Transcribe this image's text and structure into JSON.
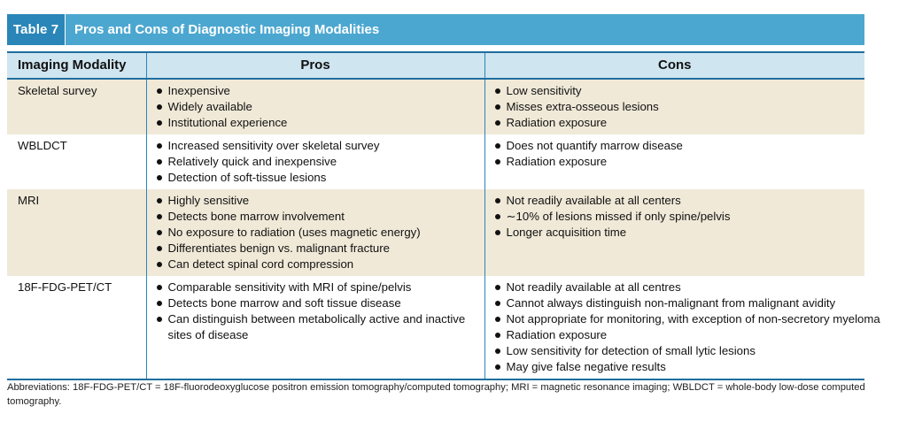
{
  "table": {
    "number": "Table 7",
    "title": "Pros and Cons of Diagnostic Imaging Modalities",
    "headers": [
      "Imaging Modality",
      "Pros",
      "Cons"
    ],
    "rows": [
      {
        "modality": "Skeletal survey",
        "pros": [
          "Inexpensive",
          "Widely available",
          "Institutional experience"
        ],
        "cons": [
          "Low sensitivity",
          "Misses extra-osseous lesions",
          "Radiation exposure"
        ]
      },
      {
        "modality": "WBLDCT",
        "pros": [
          "Increased sensitivity over skeletal survey",
          "Relatively quick and inexpensive",
          "Detection of soft-tissue lesions"
        ],
        "cons": [
          "Does not quantify marrow disease",
          "Radiation exposure"
        ]
      },
      {
        "modality": "MRI",
        "pros": [
          "Highly sensitive",
          "Detects bone marrow involvement",
          "No exposure to radiation (uses magnetic energy)",
          "Differentiates benign vs. malignant fracture",
          "Can detect spinal cord compression"
        ],
        "cons": [
          "Not readily available at all centers",
          "∼10% of lesions missed if only spine/pelvis",
          "Longer acquisition time"
        ]
      },
      {
        "modality": "18F-FDG-PET/CT",
        "pros": [
          "Comparable sensitivity with MRI of spine/pelvis",
          "Detects bone marrow and soft tissue disease",
          "Can distinguish between metabolically active and inactive sites of disease"
        ],
        "cons": [
          "Not readily available at all centres",
          "Cannot always distinguish non-malignant from malignant avidity",
          "Not appropriate for monitoring, with exception of non-secretory myeloma",
          "Radiation exposure",
          "Low sensitivity for detection of small lytic lesions",
          "May give false negative results"
        ]
      }
    ]
  },
  "footnote": "Abbreviations: 18F-FDG-PET/CT = 18F-fluorodeoxyglucose positron emission tomography/computed tomography; MRI = magnetic resonance imaging; WBLDCT = whole-body low-dose computed tomography.",
  "colors": {
    "title_bar": "#4ca7d0",
    "title_number_bg": "#2a86b8",
    "header_bg": "#cfe5f0",
    "row_shade": "#f0e9d8",
    "rule": "#1f6e9e"
  }
}
